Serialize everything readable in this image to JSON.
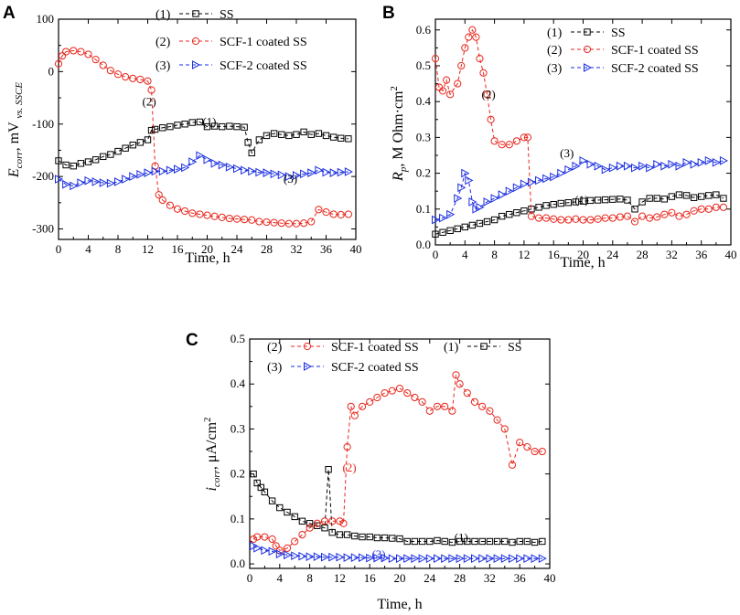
{
  "chart_data": [
    {
      "panel": "A",
      "type": "scatter",
      "title": "",
      "xlabel": "Time, h",
      "ylabel": "E_corr, mV vs. SSCE",
      "ylabel_main": "E",
      "ylabel_sub": "corr",
      "ylabel_units": ", mV ",
      "ylabel_ref": "vs. SSCE",
      "xlim": [
        0,
        40
      ],
      "ylim": [
        -320,
        100
      ],
      "xticks": [
        0,
        4,
        8,
        12,
        16,
        20,
        24,
        28,
        32,
        36,
        40
      ],
      "xtick_labels": [
        "0",
        "4",
        "8",
        "12",
        "16",
        "20",
        "24",
        "28",
        "32",
        "36",
        "40"
      ],
      "yticks": [
        -300,
        -200,
        -100,
        0,
        100
      ],
      "ytick_labels": [
        "-300",
        "-200",
        "-100",
        "0",
        "100"
      ],
      "legend_position": "top-center",
      "series": [
        {
          "name": "SS",
          "index": "(1)",
          "color": "#000000",
          "marker": "square",
          "x": [
            0,
            1,
            2,
            3,
            4,
            5,
            6,
            7,
            8,
            9,
            10,
            11,
            12,
            12.5,
            13,
            14,
            15,
            16,
            17,
            18,
            19,
            20,
            21,
            22,
            23,
            24,
            25,
            25.5,
            26,
            27,
            28,
            29,
            30,
            31,
            32,
            33,
            34,
            35,
            36,
            37,
            38,
            39
          ],
          "y": [
            -170,
            -178,
            -180,
            -175,
            -172,
            -168,
            -162,
            -158,
            -152,
            -146,
            -140,
            -135,
            -130,
            -112,
            -110,
            -107,
            -105,
            -102,
            -100,
            -97,
            -96,
            -105,
            -104,
            -105,
            -104,
            -105,
            -106,
            -135,
            -155,
            -130,
            -122,
            -118,
            -120,
            -122,
            -120,
            -115,
            -120,
            -118,
            -122,
            -125,
            -127,
            -128
          ]
        },
        {
          "name": "SCF-1 coated SS",
          "index": "(2)",
          "color": "#e8261c",
          "marker": "circle",
          "x": [
            0,
            0.5,
            1,
            2,
            3,
            4,
            5,
            6,
            7,
            8,
            9,
            10,
            11,
            12,
            12.5,
            13,
            13.5,
            14,
            15,
            16,
            17,
            18,
            19,
            20,
            21,
            22,
            23,
            24,
            25,
            26,
            27,
            28,
            29,
            30,
            31,
            32,
            33,
            34,
            35,
            36,
            37,
            38,
            39
          ],
          "y": [
            15,
            30,
            38,
            40,
            38,
            33,
            23,
            12,
            2,
            -5,
            -10,
            -13,
            -15,
            -18,
            -35,
            -180,
            -235,
            -245,
            -255,
            -262,
            -266,
            -270,
            -272,
            -274,
            -276,
            -278,
            -280,
            -281,
            -282,
            -283,
            -286,
            -287,
            -288,
            -289,
            -290,
            -290,
            -289,
            -286,
            -263,
            -268,
            -272,
            -273,
            -272
          ]
        },
        {
          "name": "SCF-2 coated SS",
          "index": "(3)",
          "color": "#1a2ee0",
          "marker": "triangle-right",
          "x": [
            0,
            1,
            2,
            3,
            4,
            5,
            6,
            7,
            8,
            9,
            10,
            11,
            12,
            13,
            14,
            15,
            16,
            17,
            18,
            19,
            20,
            21,
            22,
            23,
            24,
            25,
            26,
            27,
            28,
            29,
            30,
            31,
            32,
            33,
            34,
            35,
            36,
            37,
            38,
            39
          ],
          "y": [
            -205,
            -215,
            -218,
            -212,
            -208,
            -210,
            -212,
            -213,
            -210,
            -205,
            -200,
            -196,
            -193,
            -190,
            -190,
            -188,
            -186,
            -183,
            -172,
            -160,
            -168,
            -175,
            -178,
            -182,
            -185,
            -188,
            -190,
            -192,
            -193,
            -195,
            -197,
            -200,
            -198,
            -195,
            -193,
            -188,
            -192,
            -193,
            -192,
            -191
          ]
        }
      ],
      "annotations": [
        {
          "text": "(1)",
          "x": 20.3,
          "y": -103,
          "color": "#000000"
        },
        {
          "text": "(2)",
          "x": 12.2,
          "y": -65,
          "color": "#000000"
        },
        {
          "text": "(3)",
          "x": 31.2,
          "y": -212,
          "color": "#000000"
        }
      ]
    },
    {
      "panel": "B",
      "type": "scatter",
      "title": "",
      "xlabel": "Time, h",
      "ylabel": "Rp, M Ohm·cm2",
      "ylabel_main": "R",
      "ylabel_sub": "p",
      "ylabel_units": ", M Ohm·cm",
      "ylabel_sup": "2",
      "xlim": [
        0,
        40
      ],
      "ylim": [
        0,
        0.63
      ],
      "xticks": [
        0,
        4,
        8,
        12,
        16,
        20,
        24,
        28,
        32,
        36,
        40
      ],
      "xtick_labels": [
        "0",
        "4",
        "8",
        "12",
        "16",
        "20",
        "24",
        "28",
        "32",
        "36",
        "40"
      ],
      "yticks": [
        0,
        0.1,
        0.2,
        0.3,
        0.4,
        0.5,
        0.6
      ],
      "ytick_labels": [
        "0.0",
        "0.1",
        "0.2",
        "0.3",
        "0.4",
        "0.5",
        "0.6"
      ],
      "legend_position": "top-center",
      "series": [
        {
          "name": "SS",
          "index": "(1)",
          "color": "#000000",
          "marker": "square",
          "x": [
            0,
            1,
            2,
            3,
            4,
            5,
            6,
            7,
            8,
            9,
            10,
            11,
            12,
            13,
            14,
            15,
            16,
            17,
            18,
            19,
            20,
            21,
            22,
            23,
            24,
            25,
            26,
            27,
            28,
            29,
            30,
            31,
            32,
            33,
            34,
            35,
            36,
            37,
            38,
            39
          ],
          "y": [
            0.03,
            0.035,
            0.04,
            0.045,
            0.05,
            0.055,
            0.06,
            0.065,
            0.07,
            0.08,
            0.085,
            0.09,
            0.095,
            0.1,
            0.105,
            0.11,
            0.113,
            0.116,
            0.118,
            0.12,
            0.122,
            0.124,
            0.125,
            0.126,
            0.127,
            0.128,
            0.125,
            0.1,
            0.12,
            0.13,
            0.13,
            0.128,
            0.135,
            0.14,
            0.138,
            0.132,
            0.135,
            0.138,
            0.14,
            0.13
          ]
        },
        {
          "name": "SCF-1 coated SS",
          "index": "(2)",
          "color": "#e8261c",
          "marker": "circle",
          "x": [
            0,
            0.5,
            1,
            1.5,
            2,
            3,
            3.5,
            4,
            4.5,
            5,
            5.5,
            6,
            6.5,
            7,
            7.5,
            8,
            9,
            10,
            11,
            12,
            12.5,
            13,
            14,
            15,
            16,
            17,
            18,
            19,
            20,
            21,
            22,
            23,
            24,
            25,
            26,
            27,
            28,
            29,
            30,
            31,
            32,
            33,
            34,
            35,
            36,
            37,
            38,
            39
          ],
          "y": [
            0.52,
            0.44,
            0.43,
            0.46,
            0.42,
            0.45,
            0.5,
            0.55,
            0.58,
            0.6,
            0.58,
            0.52,
            0.48,
            0.42,
            0.35,
            0.29,
            0.28,
            0.28,
            0.29,
            0.3,
            0.3,
            0.08,
            0.075,
            0.075,
            0.072,
            0.07,
            0.07,
            0.072,
            0.07,
            0.07,
            0.072,
            0.075,
            0.075,
            0.078,
            0.08,
            0.065,
            0.08,
            0.075,
            0.078,
            0.085,
            0.09,
            0.08,
            0.085,
            0.095,
            0.1,
            0.1,
            0.105,
            0.105
          ]
        },
        {
          "name": "SCF-2 coated SS",
          "index": "(3)",
          "color": "#1a2ee0",
          "marker": "triangle-right",
          "x": [
            0,
            1,
            2,
            3,
            3.5,
            4,
            4.5,
            5,
            5.5,
            6,
            7,
            8,
            9,
            10,
            11,
            12,
            13,
            14,
            15,
            16,
            17,
            18,
            19,
            20,
            21,
            22,
            23,
            24,
            25,
            26,
            27,
            28,
            29,
            30,
            31,
            32,
            33,
            34,
            35,
            36,
            37,
            38,
            39
          ],
          "y": [
            0.07,
            0.075,
            0.085,
            0.13,
            0.16,
            0.2,
            0.18,
            0.12,
            0.1,
            0.105,
            0.12,
            0.13,
            0.14,
            0.15,
            0.16,
            0.17,
            0.175,
            0.18,
            0.185,
            0.19,
            0.2,
            0.21,
            0.22,
            0.235,
            0.225,
            0.22,
            0.21,
            0.215,
            0.22,
            0.22,
            0.215,
            0.22,
            0.215,
            0.225,
            0.22,
            0.225,
            0.22,
            0.23,
            0.225,
            0.23,
            0.235,
            0.23,
            0.235
          ]
        }
      ],
      "annotations": [
        {
          "text": "(1)",
          "x": 19.8,
          "y": 0.115,
          "color": "#000000"
        },
        {
          "text": "(2)",
          "x": 7.2,
          "y": 0.41,
          "color": "#000000"
        },
        {
          "text": "(3)",
          "x": 17.8,
          "y": 0.245,
          "color": "#000000"
        }
      ]
    },
    {
      "panel": "C",
      "type": "scatter",
      "title": "",
      "xlabel": "Time, h",
      "ylabel": "icorr, μA/cm2",
      "ylabel_main": "i",
      "ylabel_sub": "corr",
      "ylabel_units": ", μA/cm",
      "ylabel_sup": "2",
      "xlim": [
        0,
        40
      ],
      "ylim": [
        -0.01,
        0.5
      ],
      "xticks": [
        0,
        4,
        8,
        12,
        16,
        20,
        24,
        28,
        32,
        36,
        40
      ],
      "xtick_labels": [
        "0",
        "4",
        "8",
        "12",
        "16",
        "20",
        "24",
        "28",
        "32",
        "36",
        "40"
      ],
      "yticks": [
        0,
        0.1,
        0.2,
        0.3,
        0.4,
        0.5
      ],
      "ytick_labels": [
        "0.0",
        "0.1",
        "0.2",
        "0.3",
        "0.4",
        "0.5"
      ],
      "legend_position": "top",
      "series": [
        {
          "name": "SS",
          "index": "(1)",
          "color": "#000000",
          "marker": "square",
          "x": [
            0.5,
            1,
            1.5,
            2,
            3,
            4,
            5,
            6,
            7,
            8,
            9,
            10,
            10.5,
            11,
            12,
            13,
            14,
            15,
            16,
            17,
            18,
            19,
            20,
            21,
            22,
            23,
            24,
            25,
            26,
            27,
            28,
            29,
            30,
            31,
            32,
            33,
            34,
            35,
            36,
            37,
            38,
            39
          ],
          "y": [
            0.2,
            0.18,
            0.17,
            0.16,
            0.14,
            0.125,
            0.115,
            0.105,
            0.095,
            0.09,
            0.085,
            0.08,
            0.21,
            0.07,
            0.065,
            0.065,
            0.062,
            0.06,
            0.06,
            0.058,
            0.058,
            0.057,
            0.056,
            0.05,
            0.05,
            0.05,
            0.05,
            0.052,
            0.05,
            0.048,
            0.05,
            0.05,
            0.05,
            0.05,
            0.05,
            0.05,
            0.05,
            0.048,
            0.05,
            0.05,
            0.048,
            0.05
          ]
        },
        {
          "name": "SCF-1 coated SS",
          "index": "(2)",
          "color": "#e8261c",
          "marker": "circle",
          "x": [
            0.5,
            1,
            2,
            3,
            3.5,
            4,
            5,
            6,
            7,
            8,
            9,
            10,
            11,
            12,
            12.5,
            13,
            13.5,
            14,
            15,
            16,
            17,
            18,
            19,
            20,
            21,
            22,
            23,
            24,
            25,
            26,
            27,
            27.5,
            28,
            29,
            30,
            31,
            32,
            33,
            34,
            35,
            36,
            37,
            38,
            39
          ],
          "y": [
            0.055,
            0.06,
            0.06,
            0.055,
            0.04,
            0.03,
            0.035,
            0.05,
            0.065,
            0.08,
            0.09,
            0.095,
            0.095,
            0.095,
            0.09,
            0.26,
            0.35,
            0.33,
            0.35,
            0.36,
            0.37,
            0.38,
            0.385,
            0.39,
            0.38,
            0.37,
            0.36,
            0.34,
            0.35,
            0.35,
            0.34,
            0.42,
            0.4,
            0.38,
            0.36,
            0.35,
            0.34,
            0.32,
            0.3,
            0.22,
            0.27,
            0.26,
            0.25,
            0.25
          ]
        },
        {
          "name": "SCF-2 coated SS",
          "index": "(3)",
          "color": "#1a2ee0",
          "marker": "triangle-right",
          "x": [
            0.5,
            1,
            2,
            3,
            4,
            5,
            6,
            7,
            8,
            9,
            10,
            11,
            12,
            13,
            14,
            15,
            16,
            17,
            18,
            19,
            20,
            21,
            22,
            23,
            24,
            25,
            26,
            27,
            28,
            29,
            30,
            31,
            32,
            33,
            34,
            35,
            36,
            37,
            38,
            39
          ],
          "y": [
            0.04,
            0.035,
            0.03,
            0.028,
            0.022,
            0.02,
            0.018,
            0.017,
            0.016,
            0.016,
            0.015,
            0.015,
            0.015,
            0.014,
            0.014,
            0.014,
            0.013,
            0.013,
            0.013,
            0.012,
            0.012,
            0.012,
            0.012,
            0.012,
            0.012,
            0.012,
            0.012,
            0.012,
            0.012,
            0.012,
            0.012,
            0.012,
            0.012,
            0.012,
            0.012,
            0.012,
            0.012,
            0.012,
            0.012,
            0.012
          ]
        }
      ],
      "annotations": [
        {
          "text": "(1)",
          "x": 28.2,
          "y": 0.05,
          "color": "#000000"
        },
        {
          "text": "(2)",
          "x": 13.3,
          "y": 0.205,
          "color": "#e8261c"
        },
        {
          "text": "(3)",
          "x": 17.2,
          "y": 0.012,
          "color": "#1a2ee0"
        }
      ]
    }
  ]
}
